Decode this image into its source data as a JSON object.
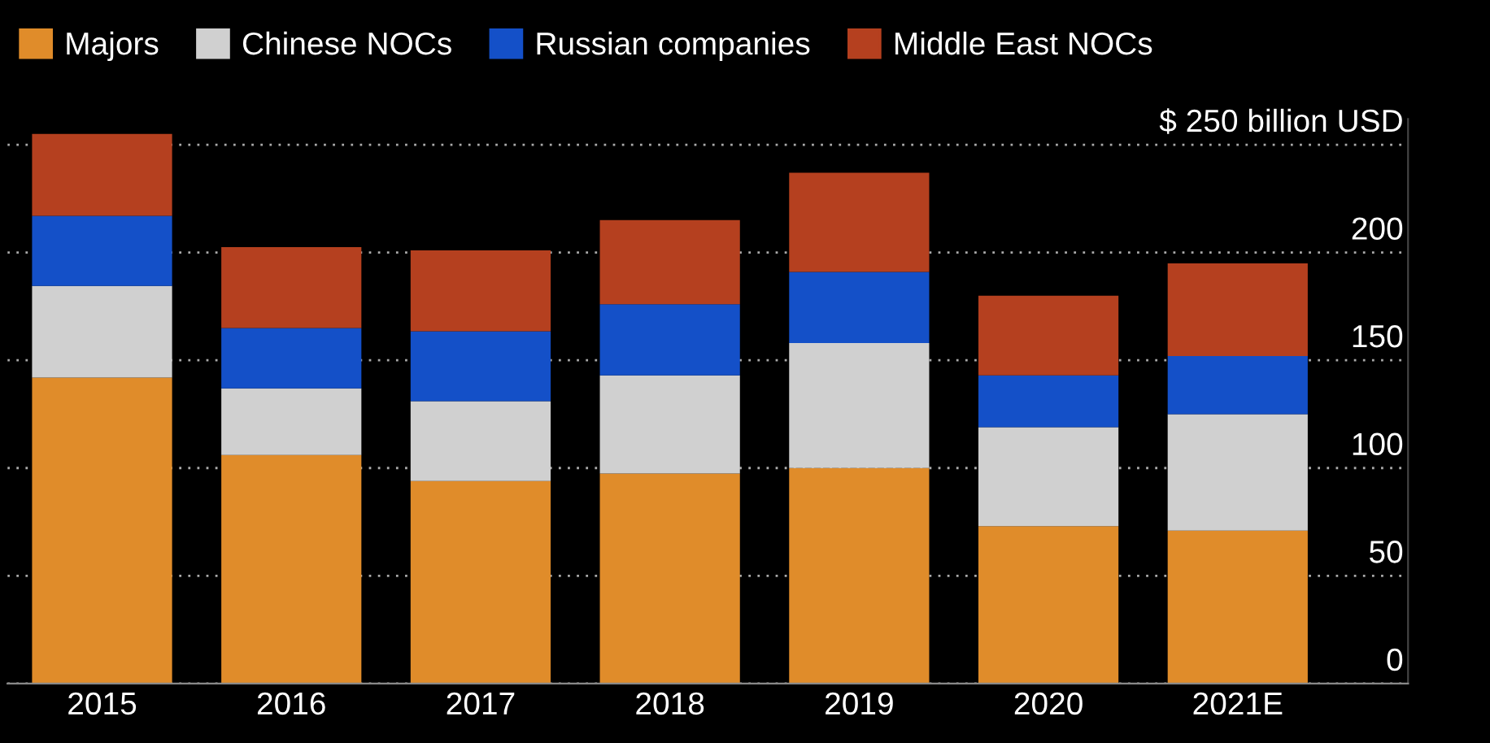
{
  "chart_data": {
    "type": "bar",
    "stacked": true,
    "categories": [
      "2015",
      "2016",
      "2017",
      "2018",
      "2019",
      "2020",
      "2021E"
    ],
    "series": [
      {
        "name": "Majors",
        "color": "#e08c2a",
        "values": [
          142,
          106,
          94,
          97.5,
          100,
          73,
          71
        ]
      },
      {
        "name": "Chinese NOCs",
        "color": "#d0d0d0",
        "values": [
          42.5,
          31,
          37,
          45.5,
          58,
          46,
          54
        ]
      },
      {
        "name": "Russian companies",
        "color": "#1450c8",
        "values": [
          32.5,
          28,
          32.5,
          33,
          33,
          24,
          27
        ]
      },
      {
        "name": "Middle East NOCs",
        "color": "#b5401f",
        "values": [
          38,
          37.5,
          37.5,
          39,
          46,
          37,
          43
        ]
      }
    ],
    "ylim": [
      0,
      262
    ],
    "yticks": [
      0,
      50,
      100,
      150,
      200,
      {
        "value": 250,
        "label": "$ 250 billion USD"
      }
    ],
    "grid": "y",
    "legend": "top left"
  }
}
